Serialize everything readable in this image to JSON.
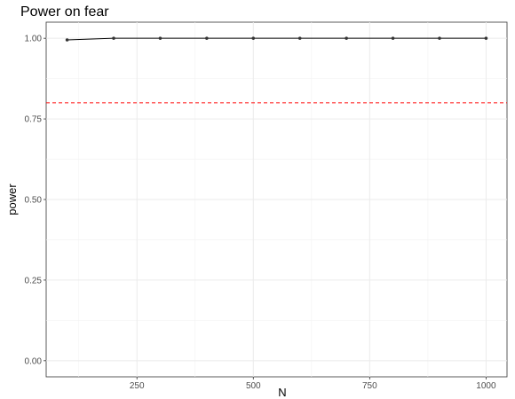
{
  "chart_data": {
    "type": "line",
    "title": "Power on fear",
    "xlabel": "N",
    "ylabel": "power",
    "xlim": [
      55,
      1045
    ],
    "ylim": [
      -0.05,
      1.05
    ],
    "x_ticks": [
      250,
      500,
      750,
      1000
    ],
    "x_tick_labels": [
      "250",
      "500",
      "750",
      "1000"
    ],
    "y_ticks": [
      0.0,
      0.25,
      0.5,
      0.75,
      1.0
    ],
    "y_tick_labels": [
      "0.00",
      "0.25",
      "0.50",
      "0.75",
      "1.00"
    ],
    "grid": true,
    "series": [
      {
        "x": [
          100,
          200,
          300,
          400,
          500,
          600,
          700,
          800,
          900,
          1000
        ],
        "y": [
          0.995,
          1.0,
          1.0,
          1.0,
          1.0,
          1.0,
          1.0,
          1.0,
          1.0,
          1.0
        ],
        "color": "#000000"
      }
    ],
    "reference_line": {
      "y": 0.8,
      "color": "#ff0000",
      "style": "dashed"
    }
  }
}
